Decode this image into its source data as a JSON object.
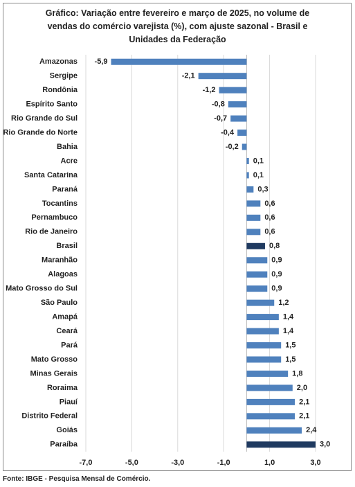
{
  "chart_data": {
    "type": "barh",
    "title": "Gráfico: Variação entre fevereiro e março de 2025, no volume de vendas do comércio varejista (%), com ajuste sazonal - Brasil e Unidades da Federação",
    "source": "Fonte: IBGE - Pesquisa Mensal de Comércio.",
    "categories": [
      "Amazonas",
      "Sergipe",
      "Rondônia",
      "Espírito Santo",
      "Rio Grande do Sul",
      "Rio Grande do Norte",
      "Bahia",
      "Acre",
      "Santa Catarina",
      "Paraná",
      "Tocantins",
      "Pernambuco",
      "Rio de Janeiro",
      "Brasil",
      "Maranhão",
      "Alagoas",
      "Mato Grosso do Sul",
      "São Paulo",
      "Amapá",
      "Ceará",
      "Pará",
      "Mato Grosso",
      "Minas Gerais",
      "Roraima",
      "Piauí",
      "Distrito Federal",
      "Goiás",
      "Paraíba"
    ],
    "values": [
      -5.9,
      -2.1,
      -1.2,
      -0.8,
      -0.7,
      -0.4,
      -0.2,
      0.1,
      0.1,
      0.3,
      0.6,
      0.6,
      0.6,
      0.8,
      0.9,
      0.9,
      0.9,
      1.2,
      1.4,
      1.4,
      1.5,
      1.5,
      1.8,
      2.0,
      2.1,
      2.1,
      2.4,
      3.0
    ],
    "value_labels": [
      "-5,9",
      "-2,1",
      "-1,2",
      "-0,8",
      "-0,7",
      "-0,4",
      "-0,2",
      "0,1",
      "0,1",
      "0,3",
      "0,6",
      "0,6",
      "0,6",
      "0,8",
      "0,9",
      "0,9",
      "0,9",
      "1,2",
      "1,4",
      "1,4",
      "1,5",
      "1,5",
      "1,8",
      "2,0",
      "2,1",
      "2,1",
      "2,4",
      "3,0"
    ],
    "colors": [
      "#4f81bd",
      "#4f81bd",
      "#4f81bd",
      "#4f81bd",
      "#4f81bd",
      "#4f81bd",
      "#4f81bd",
      "#4f81bd",
      "#4f81bd",
      "#4f81bd",
      "#4f81bd",
      "#4f81bd",
      "#4f81bd",
      "#1f3a60",
      "#4f81bd",
      "#4f81bd",
      "#4f81bd",
      "#4f81bd",
      "#4f81bd",
      "#4f81bd",
      "#4f81bd",
      "#4f81bd",
      "#4f81bd",
      "#4f81bd",
      "#4f81bd",
      "#4f81bd",
      "#4f81bd",
      "#1f3a60"
    ],
    "xlim": [
      -7,
      3
    ],
    "xticks": [
      {
        "value": -7,
        "label": "-7,0"
      },
      {
        "value": -5,
        "label": "-5,0"
      },
      {
        "value": -3,
        "label": "-3,0"
      },
      {
        "value": -1,
        "label": "-1,0"
      },
      {
        "value": 1,
        "label": "1,0"
      },
      {
        "value": 3,
        "label": "3,0"
      }
    ],
    "grid": true
  }
}
